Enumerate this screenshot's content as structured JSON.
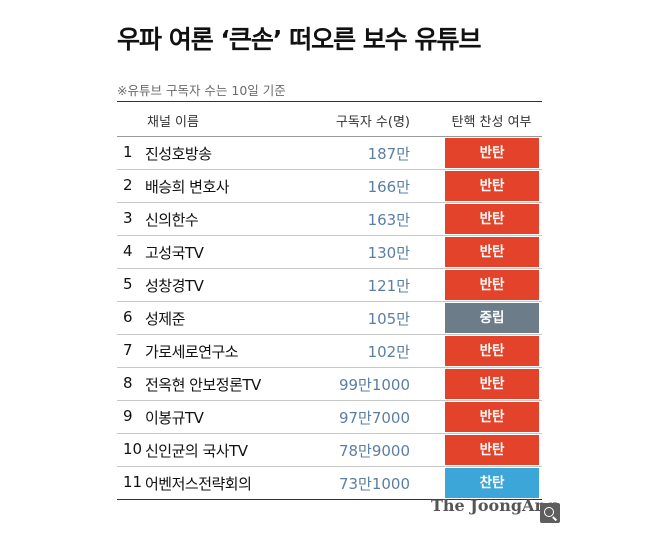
{
  "title": "우파 여론 ‘큰손’ 떠오른 보수 유튜브",
  "note": "※유튜브 구독자 수는 10일 기준",
  "headers": {
    "name": "채널 이름",
    "subscribers": "구독자 수(명)",
    "stance": "탄핵 찬성 여부"
  },
  "colors": {
    "반탄": "#e2432a",
    "중립": "#6c7c88",
    "찬탄": "#3da6d8"
  },
  "rows": [
    {
      "rank": "1",
      "name": "진성호방송",
      "subscribers": "187만",
      "stance": "반탄"
    },
    {
      "rank": "2",
      "name": "배승희 변호사",
      "subscribers": "166만",
      "stance": "반탄"
    },
    {
      "rank": "3",
      "name": "신의한수",
      "subscribers": "163만",
      "stance": "반탄"
    },
    {
      "rank": "4",
      "name": "고성국TV",
      "subscribers": "130만",
      "stance": "반탄"
    },
    {
      "rank": "5",
      "name": "성창경TV",
      "subscribers": "121만",
      "stance": "반탄"
    },
    {
      "rank": "6",
      "name": "성제준",
      "subscribers": "105만",
      "stance": "중립"
    },
    {
      "rank": "7",
      "name": "가로세로연구소",
      "subscribers": "102만",
      "stance": "반탄"
    },
    {
      "rank": "8",
      "name": "전옥현 안보정론TV",
      "subscribers": "99만1000",
      "stance": "반탄"
    },
    {
      "rank": "9",
      "name": "이봉규TV",
      "subscribers": "97만7000",
      "stance": "반탄"
    },
    {
      "rank": "10",
      "name": "신인균의 국사TV",
      "subscribers": "78만9000",
      "stance": "반탄"
    },
    {
      "rank": "11",
      "name": "어벤저스전략회의",
      "subscribers": "73만1000",
      "stance": "찬탄"
    }
  ],
  "logo": "The JoongAng",
  "zoom_icon": "zoom-icon"
}
